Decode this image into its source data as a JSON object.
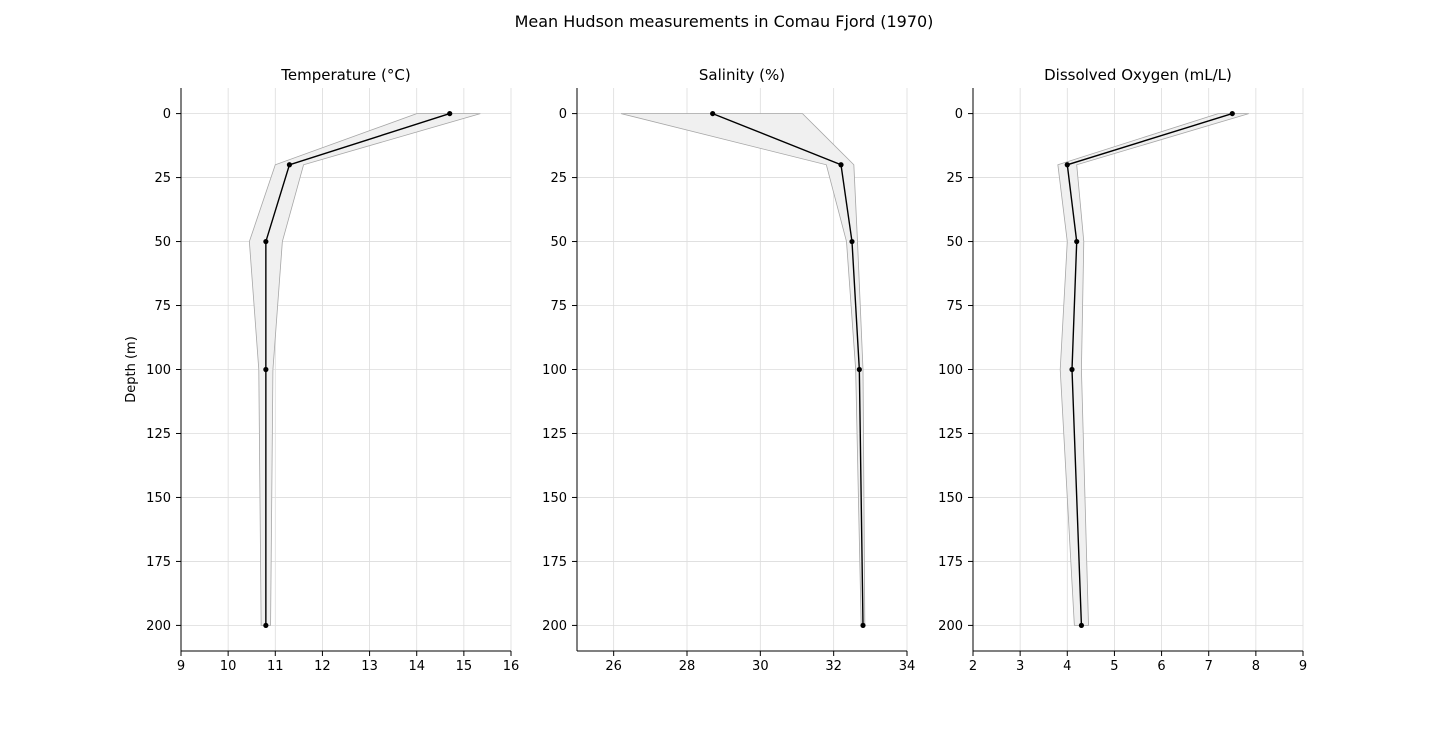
{
  "figure": {
    "title": "Mean Hudson measurements in Comau Fjord (1970)"
  },
  "chart_data": [
    {
      "type": "line",
      "title": "Temperature (°C)",
      "xlabel": "",
      "ylabel": "Depth (m)",
      "xlim": [
        9,
        16
      ],
      "ylim": [
        210,
        -10
      ],
      "y_inverted": true,
      "xticks": [
        "9",
        "10",
        "11",
        "12",
        "13",
        "14",
        "15",
        "16"
      ],
      "yticks": [
        "0",
        "25",
        "50",
        "75",
        "100",
        "125",
        "150",
        "175",
        "200"
      ],
      "grid": true,
      "depth": [
        0,
        20,
        50,
        100,
        200
      ],
      "values": [
        14.7,
        11.3,
        10.8,
        10.8,
        10.8
      ],
      "band_lower": [
        14.0,
        11.0,
        10.45,
        10.65,
        10.7
      ],
      "band_upper": [
        15.35,
        11.6,
        11.15,
        10.95,
        10.9
      ],
      "colors": {
        "line": "#000000",
        "band": "#f0f0f0",
        "band_edge": "#a6a6a6"
      }
    },
    {
      "type": "line",
      "title": "Salinity (%)",
      "xlabel": "",
      "ylabel": "",
      "xlim": [
        25,
        34
      ],
      "ylim": [
        210,
        -10
      ],
      "y_inverted": true,
      "xticks": [
        "26",
        "28",
        "30",
        "32",
        "34"
      ],
      "yticks": [
        "0",
        "25",
        "50",
        "75",
        "100",
        "125",
        "150",
        "175",
        "200"
      ],
      "grid": true,
      "depth": [
        0,
        20,
        50,
        100,
        200
      ],
      "values": [
        28.7,
        32.2,
        32.5,
        32.7,
        32.8
      ],
      "band_lower": [
        26.2,
        31.8,
        32.35,
        32.6,
        32.75
      ],
      "band_upper": [
        31.15,
        32.55,
        32.65,
        32.8,
        32.85
      ],
      "colors": {
        "line": "#000000",
        "band": "#f0f0f0",
        "band_edge": "#a6a6a6"
      }
    },
    {
      "type": "line",
      "title": "Dissolved Oxygen (mL/L)",
      "xlabel": "",
      "ylabel": "",
      "xlim": [
        2,
        9
      ],
      "ylim": [
        210,
        -10
      ],
      "y_inverted": true,
      "xticks": [
        "2",
        "3",
        "4",
        "5",
        "6",
        "7",
        "8",
        "9"
      ],
      "yticks": [
        "0",
        "25",
        "50",
        "75",
        "100",
        "125",
        "150",
        "175",
        "200"
      ],
      "grid": true,
      "depth": [
        0,
        20,
        50,
        100,
        200
      ],
      "values": [
        7.5,
        4.0,
        4.2,
        4.1,
        4.3
      ],
      "band_lower": [
        7.2,
        3.8,
        4.0,
        3.85,
        4.15
      ],
      "band_upper": [
        7.85,
        4.2,
        4.35,
        4.3,
        4.45
      ],
      "colors": {
        "line": "#000000",
        "band": "#f0f0f0",
        "band_edge": "#a6a6a6"
      }
    }
  ]
}
